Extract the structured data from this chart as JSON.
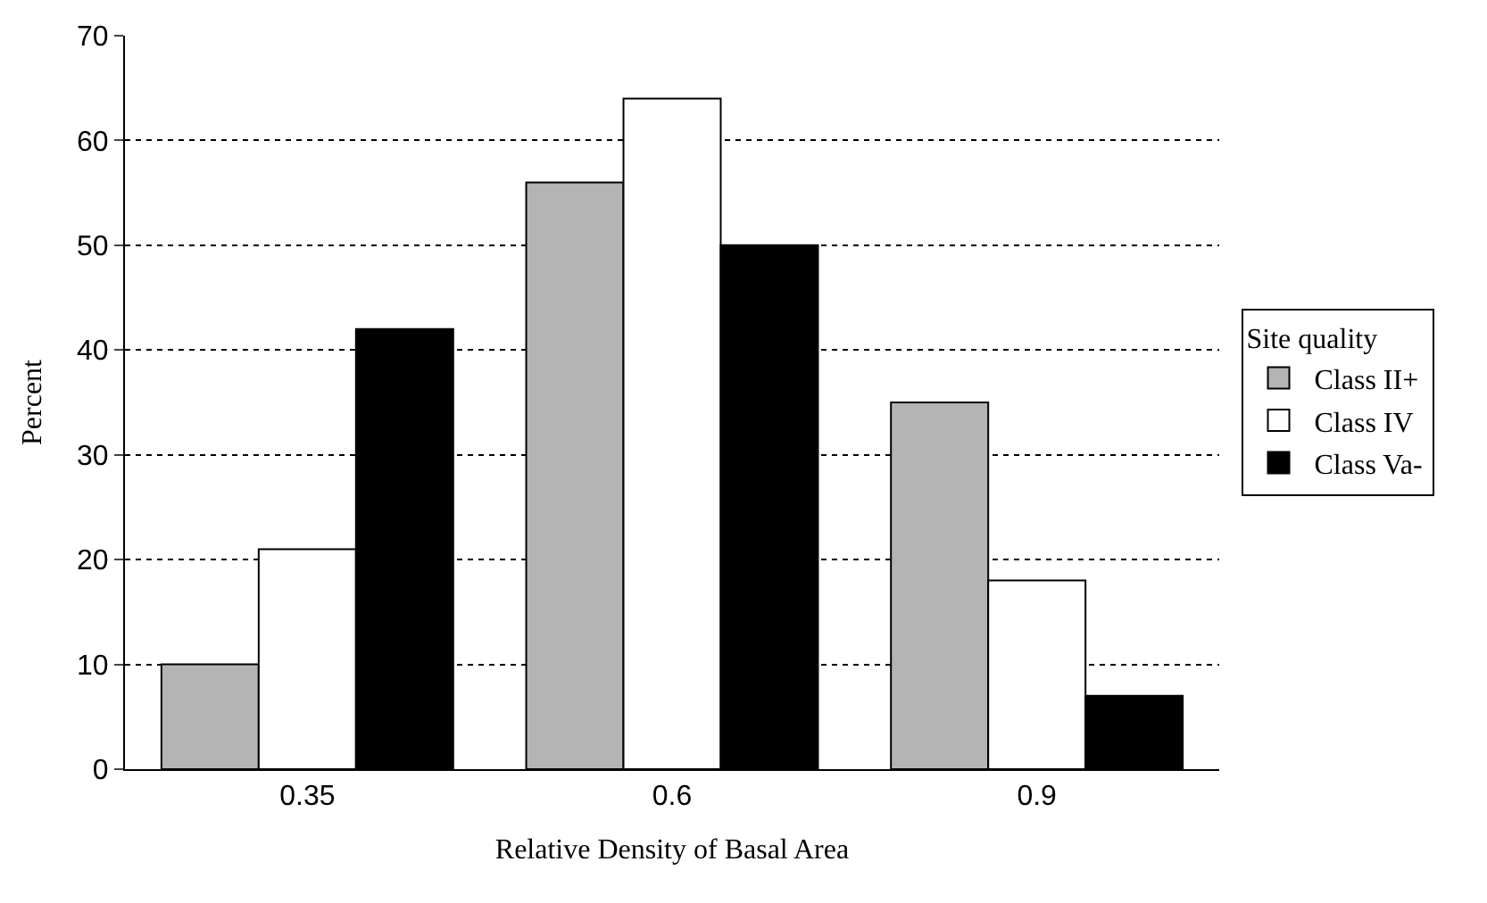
{
  "chart_data": {
    "type": "bar",
    "xlabel": "Relative Density of Basal Area",
    "ylabel": "Percent",
    "legend_title": "Site quality",
    "categories": [
      "0.35",
      "0.6",
      "0.9"
    ],
    "series": [
      {
        "name": "Class II+",
        "color": "#b4b4b4",
        "values": [
          10,
          56,
          35
        ]
      },
      {
        "name": "Class IV",
        "color": "#ffffff",
        "values": [
          21,
          64,
          18
        ]
      },
      {
        "name": "Class Va-",
        "color": "#000000",
        "values": [
          42,
          50,
          7
        ]
      }
    ],
    "ylim": [
      0,
      70
    ],
    "yticks": [
      0,
      10,
      20,
      30,
      40,
      50,
      60,
      70
    ],
    "grid": "y",
    "legend": "right"
  }
}
